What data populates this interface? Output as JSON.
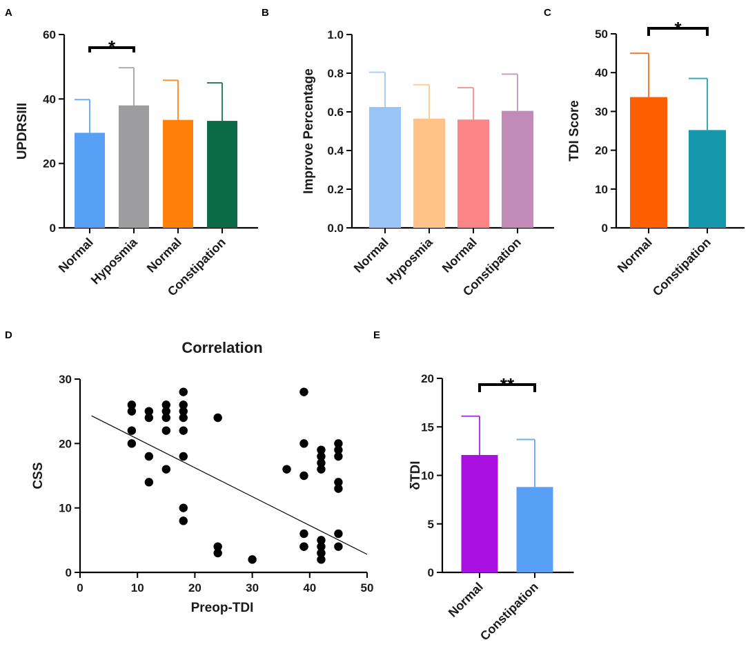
{
  "figure": {
    "panel_letters": [
      "A",
      "B",
      "C",
      "D",
      "E"
    ]
  },
  "chart_data": [
    {
      "panel": "A",
      "type": "bar",
      "title": "",
      "xlabel": "",
      "ylabel": "UPDRSIII",
      "ylim": [
        0,
        60
      ],
      "yticks": [
        0,
        20,
        40,
        60
      ],
      "categories": [
        "Normal",
        "Hyposmia",
        "Normal",
        "Constipation"
      ],
      "values": [
        29.5,
        38,
        33.5,
        33.2
      ],
      "errors": [
        10.3,
        11.7,
        12.3,
        11.8
      ],
      "colors": [
        "#57a0f5",
        "#9d9d9f",
        "#ff8008",
        "#0b6b48"
      ],
      "significance": [
        {
          "from": 0,
          "to": 1,
          "label": "*"
        }
      ]
    },
    {
      "panel": "B",
      "type": "bar",
      "title": "",
      "xlabel": "",
      "ylabel": "Improve Percentage",
      "ylim": [
        0,
        1.0
      ],
      "yticks": [
        "0.0",
        "0.2",
        "0.4",
        "0.6",
        "0.8",
        "1.0"
      ],
      "categories": [
        "Normal",
        "Hyposmia",
        "Normal",
        "Constipation"
      ],
      "values": [
        0.625,
        0.565,
        0.56,
        0.605
      ],
      "errors": [
        0.18,
        0.175,
        0.165,
        0.19
      ],
      "colors": [
        "#98c4f8",
        "#ffc388",
        "#fd8485",
        "#c08bb6"
      ],
      "significance": []
    },
    {
      "panel": "C",
      "type": "bar",
      "title": "",
      "xlabel": "",
      "ylabel": "TDI Score",
      "ylim": [
        0,
        50
      ],
      "yticks": [
        0,
        10,
        20,
        30,
        40,
        50
      ],
      "categories": [
        "Normal",
        "Constipation"
      ],
      "values": [
        33.7,
        25.2
      ],
      "errors": [
        11.3,
        13.3
      ],
      "colors": [
        "#fe6000",
        "#1698ac"
      ],
      "significance": [
        {
          "from": 0,
          "to": 1,
          "label": "*"
        }
      ]
    },
    {
      "panel": "D",
      "type": "scatter",
      "title": "Correlation",
      "xlabel": "Preop-TDI",
      "ylabel": "CSS",
      "xlim": [
        0,
        50
      ],
      "ylim": [
        0,
        30
      ],
      "xticks": [
        0,
        10,
        20,
        30,
        40,
        50
      ],
      "yticks": [
        0,
        10,
        20,
        30
      ],
      "x": [
        9,
        9,
        9,
        9,
        12,
        12,
        12,
        12,
        15,
        15,
        15,
        15,
        15,
        18,
        18,
        18,
        18,
        18,
        18,
        18,
        18,
        24,
        24,
        24,
        30,
        36,
        39,
        39,
        39,
        39,
        39,
        39,
        42,
        42,
        42,
        42,
        42,
        42,
        42,
        42,
        42,
        45,
        45,
        45,
        45,
        45,
        45,
        45
      ],
      "y": [
        26,
        25,
        22,
        20,
        25,
        24,
        18,
        14,
        26,
        25,
        24,
        22,
        16,
        28,
        26,
        25,
        24,
        22,
        18,
        10,
        8,
        4,
        24,
        3,
        2,
        16,
        4,
        28,
        20,
        15,
        6,
        4,
        3,
        19,
        18,
        17,
        16,
        5,
        4,
        3,
        2,
        20,
        19,
        18,
        14,
        13,
        6,
        4
      ],
      "regression": {
        "x": [
          2,
          50
        ],
        "y": [
          24.3,
          2.8
        ]
      }
    },
    {
      "panel": "E",
      "type": "bar",
      "title": "",
      "xlabel": "",
      "ylabel": "δTDI",
      "ylim": [
        0,
        20
      ],
      "yticks": [
        0,
        5,
        10,
        15,
        20
      ],
      "categories": [
        "Normal",
        "Constipation"
      ],
      "values": [
        12.1,
        8.8
      ],
      "errors": [
        4.0,
        4.9
      ],
      "colors": [
        "#a90fdf",
        "#57a0f5"
      ],
      "significance": [
        {
          "from": 0,
          "to": 1,
          "label": "**"
        }
      ]
    }
  ]
}
